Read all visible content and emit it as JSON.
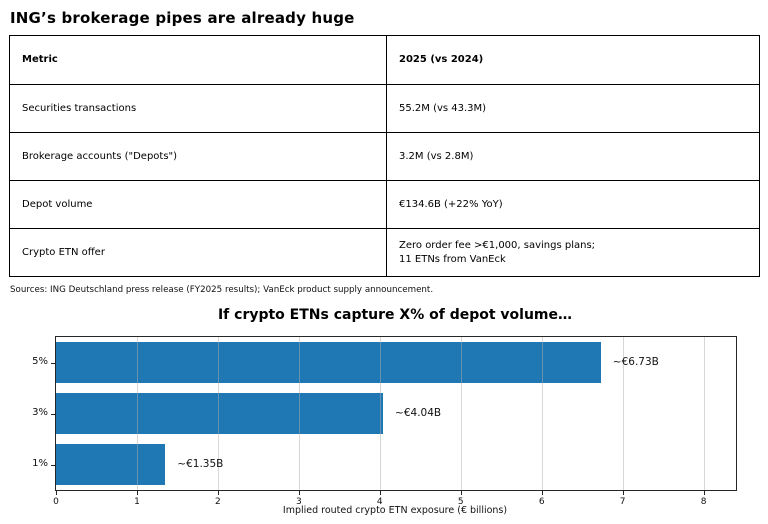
{
  "header": {
    "title": "ING’s brokerage pipes are already huge"
  },
  "table": {
    "columns": [
      "Metric",
      "2025 (vs 2024)"
    ],
    "rows": [
      {
        "metric": "Securities transactions",
        "value": "55.2M (vs 43.3M)"
      },
      {
        "metric": "Brokerage accounts (\"Depots\")",
        "value": "3.2M (vs 2.8M)"
      },
      {
        "metric": "Depot volume",
        "value": "€134.6B (+22% YoY)"
      },
      {
        "metric": "Crypto ETN offer",
        "value": "Zero order fee >€1,000, savings plans;\n11 ETNs from VanEck"
      }
    ]
  },
  "sources": "Sources: ING Deutschland press release (FY2025 results); VanEck product supply announcement.",
  "chart_data": {
    "type": "bar",
    "orientation": "horizontal",
    "title": "If crypto ETNs capture X% of depot volume…",
    "categories": [
      "5%",
      "3%",
      "1%"
    ],
    "values": [
      6.73,
      4.04,
      1.35
    ],
    "bar_labels": [
      "~€6.73B",
      "~€4.04B",
      "~€1.35B"
    ],
    "xlabel": "Implied routed crypto ETN exposure (€ billions)",
    "xlim": [
      0,
      8.4
    ],
    "xticks": [
      0,
      1,
      2,
      3,
      4,
      5,
      6,
      7,
      8
    ],
    "grid": true,
    "legend": "none",
    "bar_color": "#1f77b4",
    "frame_color": "#262626"
  }
}
